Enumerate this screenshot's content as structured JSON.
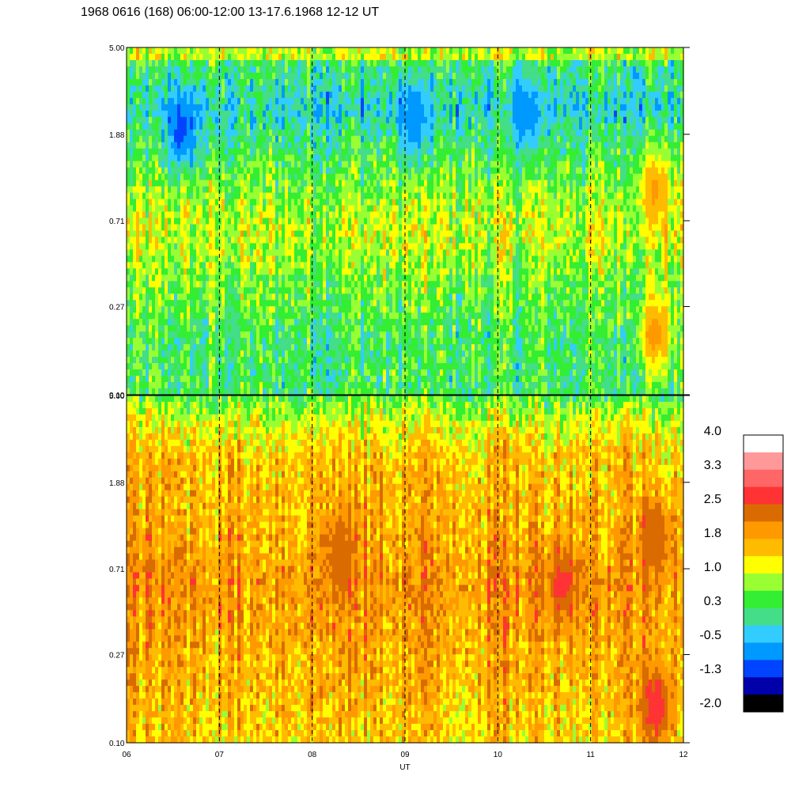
{
  "chart_data": {
    "type": "heatmap",
    "title": "1968 0616 (168) 06:00-12:00 13-17.6.1968  12-12 UT",
    "xlabel": "UT",
    "x_ticks": [
      "06",
      "07",
      "08",
      "09",
      "10",
      "11",
      "12"
    ],
    "x_range_hours": [
      6,
      12
    ],
    "y_scale": "log",
    "y_range": [
      0.1,
      5.0
    ],
    "y_ticks": [
      "5.00",
      "1.88",
      "0.71",
      "0.27",
      "0.10"
    ],
    "y_tick_values": [
      5.0,
      1.88,
      0.71,
      0.27,
      0.1
    ],
    "vertical_dashed_lines_at_hours": [
      7,
      8,
      9,
      10,
      11
    ],
    "panels": [
      {
        "name": "upper",
        "profile_by_y": [
          {
            "y": 5.0,
            "level": 0.6
          },
          {
            "y": 4.6,
            "level": 1.3
          },
          {
            "y": 4.2,
            "level": 0.3
          },
          {
            "y": 2.5,
            "level": -0.2
          },
          {
            "y": 1.6,
            "level": 0.3
          },
          {
            "y": 0.9,
            "level": 0.8
          },
          {
            "y": 0.6,
            "level": 1.0
          },
          {
            "y": 0.4,
            "level": 0.7
          },
          {
            "y": 0.2,
            "level": 0.3
          },
          {
            "y": 0.1,
            "level": 0.3
          }
        ],
        "features": [
          {
            "x": 6.6,
            "y": 2.0,
            "level": -1.0
          },
          {
            "x": 9.1,
            "y": 2.2,
            "level": -0.8
          },
          {
            "x": 10.3,
            "y": 2.3,
            "level": -0.7
          },
          {
            "x": 11.7,
            "y": 1.0,
            "level": 1.8
          },
          {
            "x": 11.7,
            "y": 0.2,
            "level": 2.0
          }
        ]
      },
      {
        "name": "lower",
        "profile_by_y": [
          {
            "y": 5.0,
            "level": 0.5
          },
          {
            "y": 3.8,
            "level": 1.1
          },
          {
            "y": 2.5,
            "level": 1.6
          },
          {
            "y": 1.5,
            "level": 1.7
          },
          {
            "y": 1.0,
            "level": 1.8
          },
          {
            "y": 0.6,
            "level": 2.0
          },
          {
            "y": 0.4,
            "level": 1.9
          },
          {
            "y": 0.2,
            "level": 1.7
          },
          {
            "y": 0.1,
            "level": 1.5
          }
        ],
        "features": [
          {
            "x": 8.3,
            "y": 0.85,
            "level": 2.4
          },
          {
            "x": 10.7,
            "y": 0.6,
            "level": 2.6
          },
          {
            "x": 11.7,
            "y": 1.0,
            "level": 2.5
          },
          {
            "x": 11.7,
            "y": 0.15,
            "level": 2.8
          }
        ]
      }
    ],
    "colorbar": {
      "labels": [
        "4.0",
        "3.3",
        "2.5",
        "1.8",
        "1.0",
        "0.3",
        "-0.5",
        "-1.3",
        "-2.0"
      ],
      "range": [
        -2.0,
        4.0
      ],
      "colors_top_to_bottom": [
        "#ffffff",
        "#ff9999",
        "#ff6666",
        "#ff3333",
        "#d96b00",
        "#ff9900",
        "#ffbb00",
        "#ffff00",
        "#99ff33",
        "#33ee33",
        "#44dd88",
        "#33ccff",
        "#0099ff",
        "#0044ff",
        "#0000aa",
        "#000000"
      ]
    }
  }
}
